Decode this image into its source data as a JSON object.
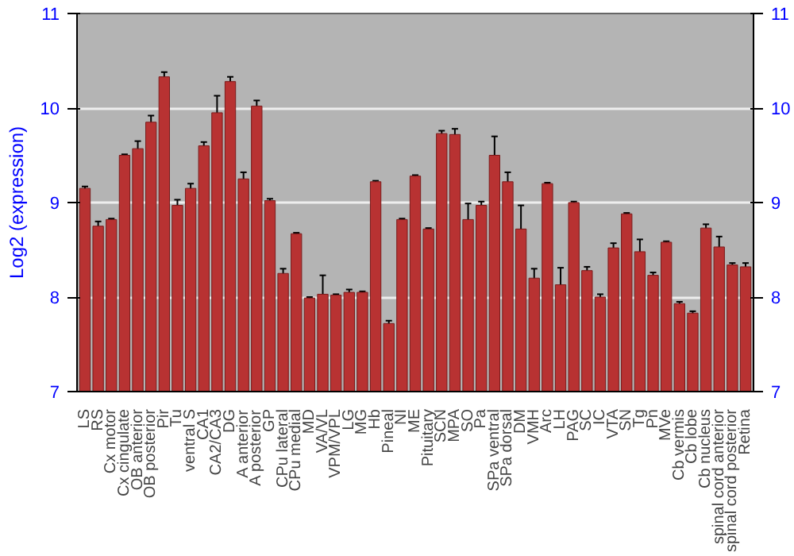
{
  "chart_data": {
    "type": "bar",
    "ylabel": "Log2 (expression)",
    "categories": [
      "LS",
      "RS",
      "Cx motor",
      "Cx cingulate",
      "OB anterior",
      "OB posterior",
      "Pir",
      "Tu",
      "ventral S",
      "CA1",
      "CA2/CA3",
      "DG",
      "A anterior",
      "A posterior",
      "GP",
      "CPu lateral",
      "CPu medial",
      "MD",
      "VA/VL",
      "VPM/VPL",
      "LG",
      "MG",
      "Hb",
      "Pineal",
      "NI",
      "ME",
      "Pituitary",
      "SCN",
      "MPA",
      "SO",
      "Pa",
      "SPa ventral",
      "SPa dorsal",
      "DM",
      "VMH",
      "Arc",
      "LH",
      "PAG",
      "SC",
      "IC",
      "VTA",
      "SN",
      "Tg",
      "Pn",
      "MVe",
      "Cb vermis",
      "Cb lobe",
      "Cb nucleus",
      "spinal cord anterior",
      "spinal cord posterior",
      "Retina"
    ],
    "values": [
      9.15,
      8.75,
      8.82,
      9.5,
      9.57,
      9.85,
      10.33,
      8.97,
      9.15,
      9.6,
      9.95,
      10.28,
      9.25,
      10.02,
      9.02,
      8.25,
      8.67,
      7.99,
      8.03,
      8.02,
      8.05,
      8.05,
      9.22,
      7.72,
      8.82,
      9.28,
      8.72,
      9.73,
      9.72,
      8.82,
      8.97,
      9.5,
      9.22,
      8.72,
      8.2,
      9.2,
      8.13,
      9.0,
      8.28,
      8.0,
      8.52,
      8.88,
      8.48,
      8.23,
      8.58,
      7.93,
      7.83,
      8.73,
      8.53,
      8.34,
      8.32
    ],
    "errors": [
      0.02,
      0.05,
      0.01,
      0.01,
      0.08,
      0.07,
      0.05,
      0.06,
      0.05,
      0.04,
      0.18,
      0.05,
      0.07,
      0.06,
      0.02,
      0.05,
      0.01,
      0.01,
      0.2,
      0.01,
      0.03,
      0.01,
      0.01,
      0.03,
      0.01,
      0.01,
      0.01,
      0.03,
      0.06,
      0.17,
      0.04,
      0.2,
      0.1,
      0.25,
      0.1,
      0.01,
      0.18,
      0.01,
      0.04,
      0.03,
      0.05,
      0.01,
      0.13,
      0.03,
      0.01,
      0.02,
      0.02,
      0.04,
      0.11,
      0.02,
      0.04
    ],
    "color": "#b83232",
    "ylim": [
      7,
      11
    ],
    "yticks": [
      7,
      8,
      9,
      10,
      11
    ],
    "y2lim": [
      7,
      11
    ],
    "y2ticks": [
      7,
      8,
      9,
      10,
      11
    ],
    "grid": "y"
  }
}
